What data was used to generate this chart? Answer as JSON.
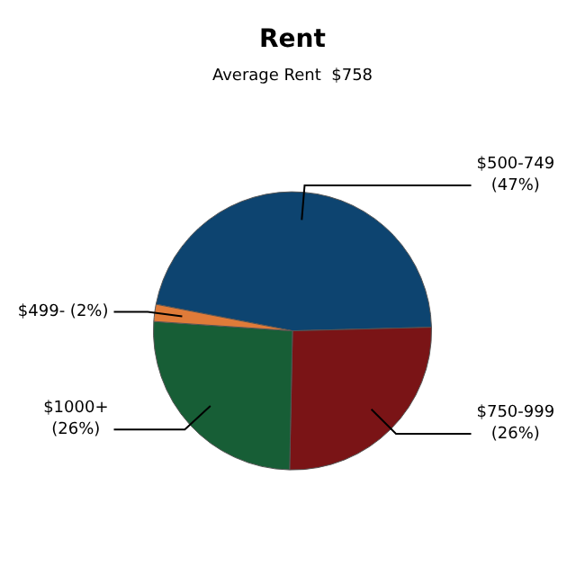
{
  "chart_data": {
    "type": "pie",
    "title": "Rent",
    "subtitle": "Average Rent  $758",
    "categories": [
      "$500-749",
      "$750-999",
      "$1000+",
      "$499-"
    ],
    "values": [
      47,
      26,
      26,
      2
    ],
    "colors": [
      "#0d4470",
      "#7a1416",
      "#175e36",
      "#e07b39"
    ],
    "value_labels": [
      "(47%)",
      "(26%)",
      "(26%)",
      "(2%)"
    ],
    "legend": false
  }
}
